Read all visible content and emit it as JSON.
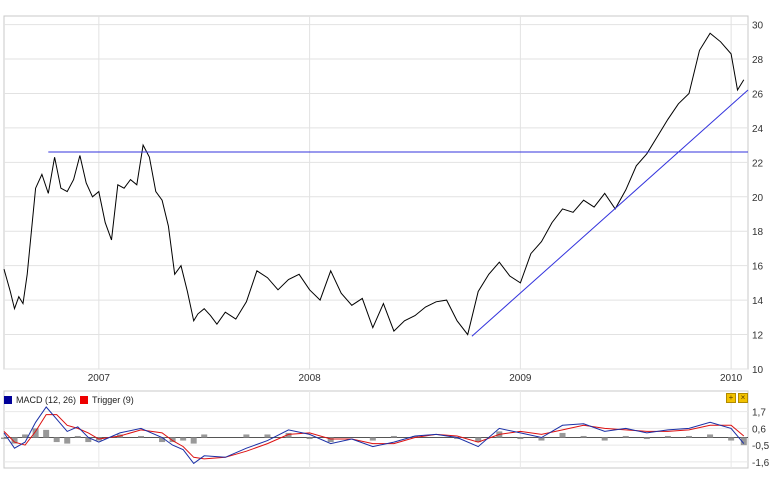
{
  "chart_data": [
    {
      "type": "line",
      "title": "",
      "xlabel": "",
      "ylabel": "",
      "x_tick_labels": [
        "2007",
        "2008",
        "2009",
        "2010"
      ],
      "x_tick_positions": [
        2007.0,
        2008.0,
        2009.0,
        2010.0
      ],
      "xlim": [
        2006.55,
        2010.08
      ],
      "y_ticks": [
        10,
        12,
        14,
        16,
        18,
        20,
        22,
        24,
        26,
        28,
        30
      ],
      "ylim": [
        10,
        30.5
      ],
      "grid": true,
      "series": [
        {
          "color": "#000000",
          "x": [
            2006.55,
            2006.58,
            2006.6,
            2006.62,
            2006.64,
            2006.66,
            2006.7,
            2006.73,
            2006.76,
            2006.79,
            2006.82,
            2006.85,
            2006.88,
            2006.91,
            2006.94,
            2006.97,
            2007.0,
            2007.03,
            2007.06,
            2007.09,
            2007.12,
            2007.15,
            2007.18,
            2007.21,
            2007.24,
            2007.27,
            2007.3,
            2007.33,
            2007.36,
            2007.39,
            2007.42,
            2007.45,
            2007.47,
            2007.5,
            2007.53,
            2007.56,
            2007.6,
            2007.65,
            2007.7,
            2007.75,
            2007.8,
            2007.85,
            2007.9,
            2007.95,
            2008.0,
            2008.05,
            2008.1,
            2008.15,
            2008.2,
            2008.25,
            2008.3,
            2008.35,
            2008.4,
            2008.45,
            2008.5,
            2008.55,
            2008.6,
            2008.65,
            2008.7,
            2008.75,
            2008.8,
            2008.85,
            2008.9,
            2008.95,
            2009.0,
            2009.05,
            2009.1,
            2009.15,
            2009.2,
            2009.25,
            2009.3,
            2009.35,
            2009.4,
            2009.45,
            2009.5,
            2009.55,
            2009.6,
            2009.65,
            2009.7,
            2009.75,
            2009.8,
            2009.85,
            2009.9,
            2009.95,
            2010.0,
            2010.03,
            2010.06
          ],
          "y": [
            15.8,
            14.5,
            13.5,
            14.2,
            13.8,
            15.5,
            20.5,
            21.3,
            20.2,
            22.3,
            20.5,
            20.3,
            21.0,
            22.4,
            20.8,
            20.0,
            20.3,
            18.5,
            17.5,
            20.7,
            20.5,
            21.0,
            20.7,
            23.0,
            22.3,
            20.3,
            19.8,
            18.3,
            15.5,
            16.0,
            14.5,
            12.8,
            13.2,
            13.5,
            13.1,
            12.6,
            13.3,
            12.9,
            13.9,
            15.7,
            15.3,
            14.6,
            15.2,
            15.5,
            14.6,
            14.0,
            15.7,
            14.4,
            13.7,
            14.1,
            12.4,
            13.8,
            12.2,
            12.8,
            13.1,
            13.6,
            13.9,
            14.0,
            12.8,
            12.0,
            14.5,
            15.5,
            16.2,
            15.4,
            15.0,
            16.7,
            17.4,
            18.5,
            19.3,
            19.1,
            19.8,
            19.4,
            20.2,
            19.3,
            20.4,
            21.8,
            22.5,
            23.5,
            24.5,
            25.4,
            26.0,
            28.5,
            29.5,
            29.0,
            28.3,
            26.2,
            26.8
          ]
        },
        {
          "color": "#3333dd",
          "x": [
            2006.76,
            2010.08
          ],
          "y": [
            22.6,
            22.6
          ]
        },
        {
          "color": "#3333dd",
          "x": [
            2008.77,
            2010.08
          ],
          "y": [
            11.9,
            26.2
          ]
        }
      ]
    },
    {
      "type": "line",
      "title": "",
      "xlabel": "",
      "ylabel": "",
      "xlim": [
        2006.55,
        2010.08
      ],
      "y_ticks": [
        -1.6,
        -0.5,
        0.6,
        1.7
      ],
      "y_tick_labels": [
        "-1,6",
        "-0,5",
        "0,6",
        "1,7"
      ],
      "ylim": [
        -2.0,
        2.0
      ],
      "grid": true,
      "legend": "top-left",
      "series": [
        {
          "name": "MACD (12, 26)",
          "color": "#1a2fa6",
          "x": [
            2006.55,
            2006.6,
            2006.65,
            2006.7,
            2006.75,
            2006.8,
            2006.85,
            2006.9,
            2006.95,
            2007.0,
            2007.1,
            2007.2,
            2007.3,
            2007.35,
            2007.4,
            2007.45,
            2007.5,
            2007.6,
            2007.7,
            2007.8,
            2007.9,
            2008.0,
            2008.1,
            2008.2,
            2008.3,
            2008.4,
            2008.5,
            2008.6,
            2008.7,
            2008.8,
            2008.9,
            2009.0,
            2009.1,
            2009.2,
            2009.3,
            2009.4,
            2009.5,
            2009.6,
            2009.7,
            2009.8,
            2009.9,
            2010.0,
            2010.06
          ],
          "y": [
            0.3,
            -0.7,
            -0.3,
            1.0,
            2.0,
            1.2,
            0.4,
            0.7,
            0.0,
            -0.3,
            0.3,
            0.6,
            0.0,
            -0.5,
            -0.8,
            -1.7,
            -1.2,
            -1.3,
            -0.7,
            -0.2,
            0.5,
            0.2,
            -0.4,
            -0.1,
            -0.6,
            -0.3,
            0.1,
            0.2,
            0.0,
            -0.6,
            0.6,
            0.3,
            0.0,
            0.8,
            0.9,
            0.4,
            0.6,
            0.3,
            0.5,
            0.6,
            1.0,
            0.6,
            -0.4
          ]
        },
        {
          "name": "Trigger (9)",
          "color": "#dd1111",
          "x": [
            2006.55,
            2006.6,
            2006.65,
            2006.7,
            2006.75,
            2006.8,
            2006.85,
            2006.9,
            2006.95,
            2007.0,
            2007.1,
            2007.2,
            2007.3,
            2007.35,
            2007.4,
            2007.45,
            2007.5,
            2007.6,
            2007.7,
            2007.8,
            2007.9,
            2008.0,
            2008.1,
            2008.2,
            2008.3,
            2008.4,
            2008.5,
            2008.6,
            2008.7,
            2008.8,
            2008.9,
            2009.0,
            2009.1,
            2009.2,
            2009.3,
            2009.4,
            2009.5,
            2009.6,
            2009.7,
            2009.8,
            2009.9,
            2010.0,
            2010.06
          ],
          "y": [
            0.4,
            -0.3,
            -0.5,
            0.4,
            1.5,
            1.5,
            0.8,
            0.6,
            0.3,
            -0.1,
            0.1,
            0.5,
            0.3,
            -0.2,
            -0.6,
            -1.3,
            -1.4,
            -1.3,
            -0.9,
            -0.4,
            0.2,
            0.3,
            -0.1,
            -0.1,
            -0.4,
            -0.4,
            0.0,
            0.2,
            0.1,
            -0.3,
            0.2,
            0.4,
            0.2,
            0.5,
            0.8,
            0.6,
            0.5,
            0.4,
            0.4,
            0.5,
            0.8,
            0.8,
            0.1
          ]
        },
        {
          "color": "#999999",
          "type": "bar",
          "x": [
            2006.55,
            2006.6,
            2006.65,
            2006.7,
            2006.75,
            2006.8,
            2006.85,
            2006.9,
            2006.95,
            2007.0,
            2007.1,
            2007.2,
            2007.3,
            2007.35,
            2007.4,
            2007.45,
            2007.5,
            2007.6,
            2007.7,
            2007.8,
            2007.9,
            2008.0,
            2008.1,
            2008.2,
            2008.3,
            2008.4,
            2008.5,
            2008.6,
            2008.7,
            2008.8,
            2008.9,
            2009.0,
            2009.1,
            2009.2,
            2009.3,
            2009.4,
            2009.5,
            2009.6,
            2009.7,
            2009.8,
            2009.9,
            2010.0,
            2010.06
          ],
          "y": [
            -0.1,
            -0.4,
            0.2,
            0.6,
            0.5,
            -0.3,
            -0.4,
            0.1,
            -0.3,
            -0.2,
            0.2,
            0.1,
            -0.3,
            -0.3,
            -0.2,
            -0.4,
            0.2,
            0.0,
            0.2,
            0.2,
            0.3,
            -0.1,
            -0.3,
            0.0,
            -0.2,
            0.1,
            0.1,
            0.0,
            -0.1,
            -0.3,
            0.4,
            -0.1,
            -0.2,
            0.3,
            0.1,
            -0.2,
            0.1,
            -0.1,
            0.1,
            0.1,
            0.2,
            -0.2,
            -0.5
          ]
        }
      ]
    }
  ],
  "macd_legend": {
    "macd_label": "MACD (12, 26)",
    "macd_color": "#000099",
    "trigger_label": "Trigger (9)",
    "trigger_color": "#ee0000"
  },
  "panel_buttons": {
    "expand_icon": "expand-icon",
    "close_icon": "close-icon"
  }
}
